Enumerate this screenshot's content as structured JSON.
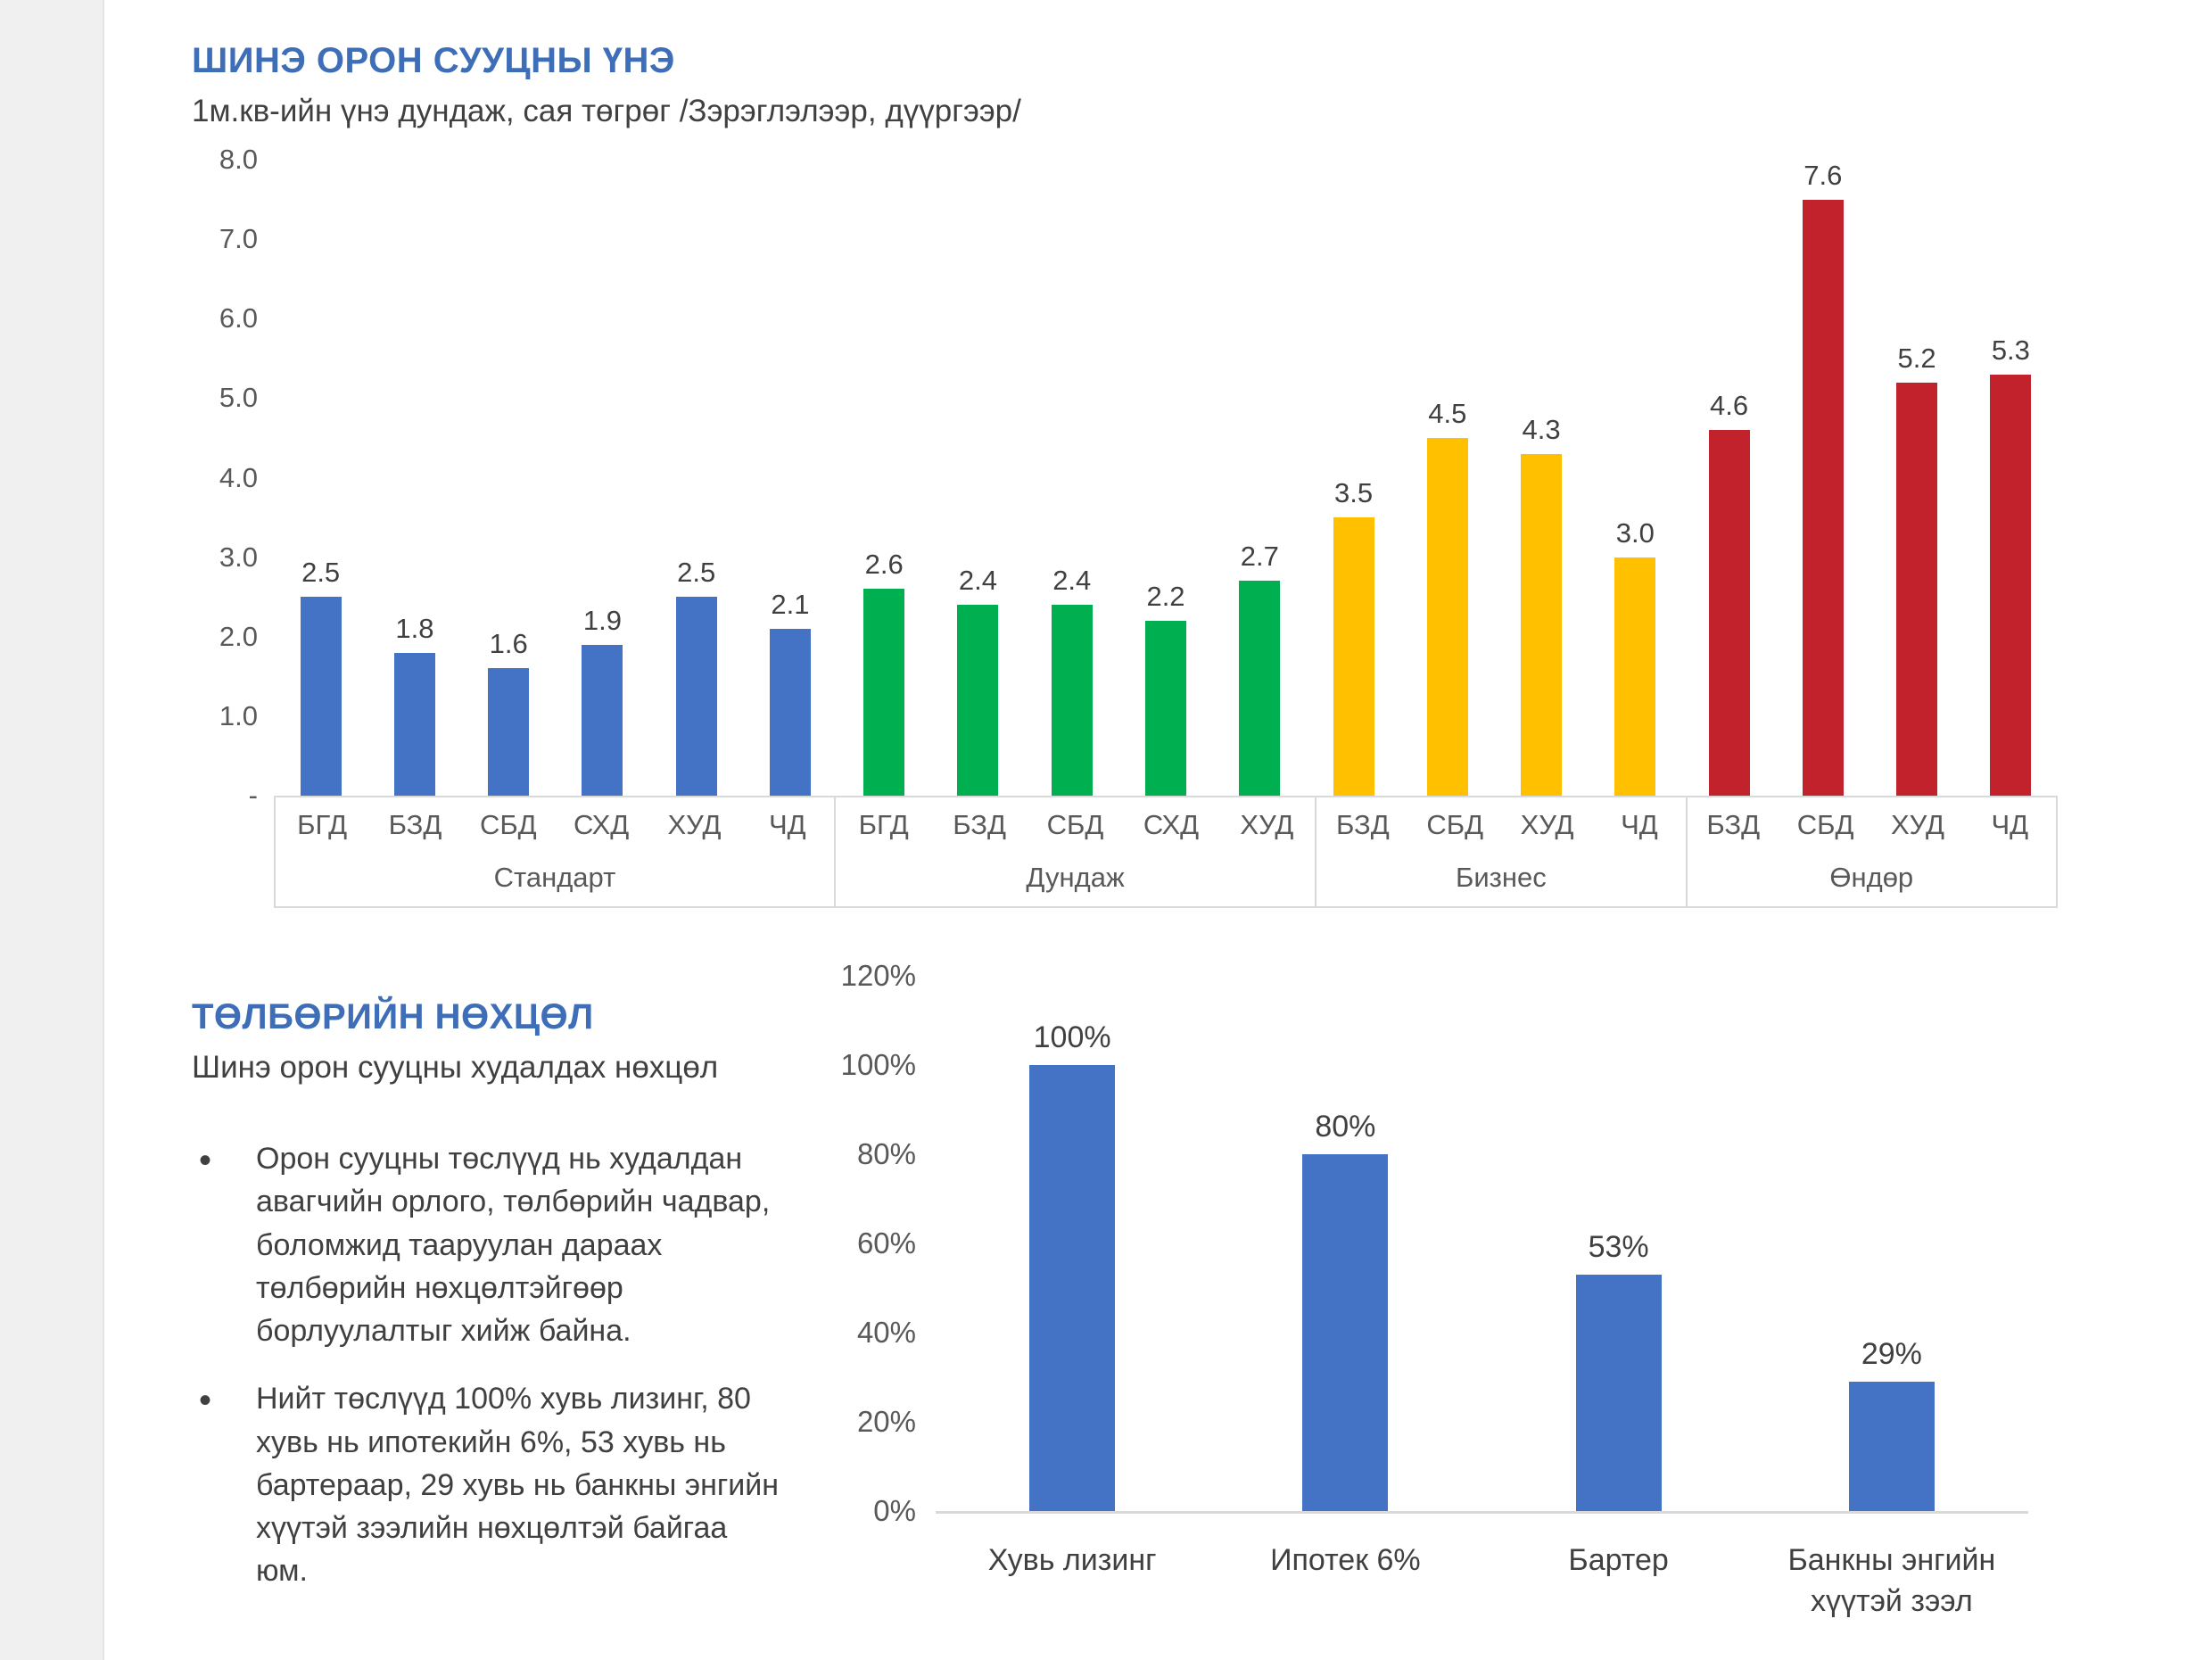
{
  "price_section": {
    "title": "ШИНЭ ОРОН СУУЦНЫ ҮНЭ",
    "subtitle": "1м.кв-ийн үнэ дундаж, сая төгрөг /Зэрэглэлээр, дүүргээр/"
  },
  "payment_section": {
    "title": "ТӨЛБӨРИЙН НӨХЦӨЛ",
    "subtitle": "Шинэ орон сууцны худалдах нөхцөл",
    "bullets": [
      "Орон сууцны төслүүд нь худалдан авагчийн орлого, төлбөрийн чадвар, боломжид тааруулан дараах төлбөрийн нөхцөлтэйгөөр борлуулалтыг хийж байна.",
      "Нийт төслүүд 100% хувь лизинг, 80 хувь нь ипотекийн 6%,  53 хувь нь бартераар, 29 хувь нь банкны энгийн хүүтэй зээлийн нөхцөлтэй байгаа юм."
    ]
  },
  "colors": {
    "heading_blue": "#3d6eb7",
    "bar_blue": "#4472C4",
    "bar_green": "#00B050",
    "bar_yellow": "#FFC000",
    "bar_red": "#C1222B",
    "axis_gray": "#d9d9d9"
  },
  "chart_data": [
    {
      "type": "bar",
      "title": "ШИНЭ ОРОН СУУЦНЫ ҮНЭ",
      "subtitle": "1м.кв-ийн үнэ дундаж, сая төгрөг /Зэрэглэлээр, дүүргээр/",
      "ylim": [
        0,
        8
      ],
      "yticks": [
        "8.0",
        "7.0",
        "6.0",
        "5.0",
        "4.0",
        "3.0",
        "2.0",
        "1.0",
        "-"
      ],
      "grid": false,
      "legend": "none",
      "groups": [
        {
          "name": "Стандарт",
          "color": "#4472C4",
          "bars": [
            {
              "label": "БГД",
              "value": 2.5
            },
            {
              "label": "БЗД",
              "value": 1.8
            },
            {
              "label": "СБД",
              "value": 1.6
            },
            {
              "label": "СХД",
              "value": 1.9
            },
            {
              "label": "ХУД",
              "value": 2.5
            },
            {
              "label": "ЧД",
              "value": 2.1
            }
          ]
        },
        {
          "name": "Дундаж",
          "color": "#00B050",
          "bars": [
            {
              "label": "БГД",
              "value": 2.6
            },
            {
              "label": "БЗД",
              "value": 2.4
            },
            {
              "label": "СБД",
              "value": 2.4
            },
            {
              "label": "СХД",
              "value": 2.2
            },
            {
              "label": "ХУД",
              "value": 2.7
            }
          ]
        },
        {
          "name": "Бизнес",
          "color": "#FFC000",
          "bars": [
            {
              "label": "БЗД",
              "value": 3.5
            },
            {
              "label": "СБД",
              "value": 4.5
            },
            {
              "label": "ХУД",
              "value": 4.3
            },
            {
              "label": "ЧД",
              "value": 3.0
            }
          ]
        },
        {
          "name": "Өндөр",
          "color": "#C1222B",
          "bars": [
            {
              "label": "БЗД",
              "value": 4.6
            },
            {
              "label": "СБД",
              "value": 7.6
            },
            {
              "label": "ХУД",
              "value": 5.2
            },
            {
              "label": "ЧД",
              "value": 5.3
            }
          ]
        }
      ]
    },
    {
      "type": "bar",
      "title": "ТӨЛБӨРИЙН НӨХЦӨЛ",
      "subtitle": "Шинэ орон сууцны худалдах нөхцөл",
      "categories": [
        "Хувь лизинг",
        "Ипотек 6%",
        "Бартер",
        "Банкны энгийн хүүтэй зээл"
      ],
      "values": [
        100,
        80,
        53,
        29
      ],
      "value_labels": [
        "100%",
        "80%",
        "53%",
        "29%"
      ],
      "yticks": [
        "120%",
        "100%",
        "80%",
        "60%",
        "40%",
        "20%",
        "0%"
      ],
      "ylim": [
        0,
        120
      ],
      "bar_color": "#4472C4",
      "grid": false,
      "legend": "none"
    }
  ]
}
